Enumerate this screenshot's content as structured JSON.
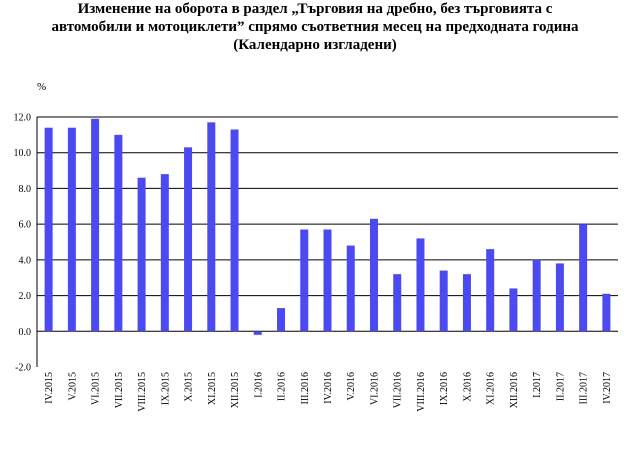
{
  "chart_data": {
    "type": "bar",
    "title_lines": [
      "Изменение на оборота в раздел „Търговия на дребно, без търговията с",
      "автомобили и мотоциклети” спрямо съответния месец на предходната година",
      "(Календарно изгладени)"
    ],
    "unit": "%",
    "categories": [
      "IV.2015",
      "V.2015",
      "VI.2015",
      "VII.2015",
      "VIII.2015",
      "IX.2015",
      "X.2015",
      "XI.2015",
      "XII.2015",
      "I.2016",
      "II.2016",
      "III.2016",
      "IV.2016",
      "V.2016",
      "VI.2016",
      "VII.2016",
      "VIII.2016",
      "IX.2016",
      "X.2016",
      "XI.2016",
      "XII.2016",
      "I.2017",
      "II.2017",
      "III.2017",
      "IV.2017"
    ],
    "values": [
      11.4,
      11.4,
      11.9,
      11.0,
      8.6,
      8.8,
      10.3,
      11.7,
      11.3,
      -0.2,
      1.3,
      5.7,
      5.7,
      4.8,
      6.3,
      3.2,
      5.2,
      3.4,
      3.2,
      4.6,
      2.4,
      4.0,
      3.8,
      6.0,
      2.1
    ],
    "ylim": [
      -2.0,
      12.0
    ],
    "yticks": [
      "-2.0",
      "0.0",
      "2.0",
      "4.0",
      "6.0",
      "8.0",
      "10.0",
      "12.0"
    ],
    "grid": true,
    "bar_color": "#4a4af0"
  }
}
